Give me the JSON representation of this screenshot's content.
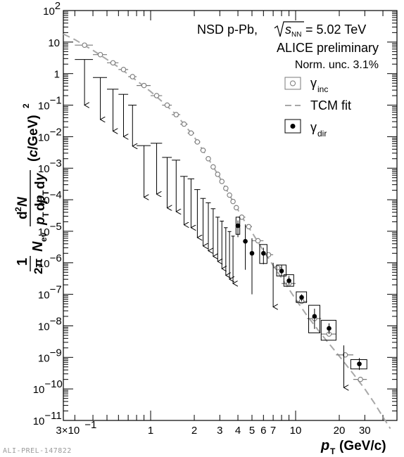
{
  "chart_data": {
    "type": "scatter",
    "x_scale": "log",
    "y_scale": "log",
    "xlim": [
      0.25,
      50
    ],
    "ylim": [
      1e-11,
      100
    ],
    "xlabel_var": "p",
    "xlabel_sub": "T",
    "xlabel_unit": "(GeV/c)",
    "x_tick_labels": [
      {
        "value": 0.3,
        "label": "3×10",
        "exp": "−1"
      },
      {
        "value": 1,
        "label": "1"
      },
      {
        "value": 2,
        "label": "2"
      },
      {
        "value": 3,
        "label": "3"
      },
      {
        "value": 4,
        "label": "4"
      },
      {
        "value": 5,
        "label": "5"
      },
      {
        "value": 6,
        "label": "6"
      },
      {
        "value": 7,
        "label": "7"
      },
      {
        "value": 10,
        "label": "10"
      },
      {
        "value": 20,
        "label": "20"
      },
      {
        "value": 30,
        "label": "30"
      }
    ],
    "y_tick_exps": [
      "2",
      "1",
      "0",
      "−1",
      "−2",
      "−3",
      "−4",
      "−5",
      "−6",
      "−7",
      "−8",
      "−9",
      "−10",
      "−11"
    ],
    "y_tick_special": {
      "10": "10",
      "1": "1"
    },
    "annotations": {
      "collision": "NSD p-Pb,",
      "energy_sym": "s",
      "energy_sub": "NN",
      "energy_val": "= 5.02 TeV",
      "experiment": "ALICE preliminary",
      "norm": "Norm. unc. 3.1%"
    },
    "legend": [
      {
        "label": "γ",
        "sub": "inc",
        "marker": "open-circle"
      },
      {
        "label": "TCM fit",
        "marker": "dashed-line"
      },
      {
        "label": "γ",
        "sub": "dir",
        "marker": "filled-circle"
      }
    ],
    "colors": {
      "inclusive": "#7a7a7a",
      "fit": "#a8a8a8",
      "direct": "#000000"
    },
    "series": [
      {
        "name": "γinc",
        "marker": "open-circle",
        "points": [
          {
            "x": 0.35,
            "y": 8.0,
            "xerr": 0.05
          },
          {
            "x": 0.45,
            "y": 4.0,
            "xerr": 0.05
          },
          {
            "x": 0.55,
            "y": 2.2,
            "xerr": 0.05
          },
          {
            "x": 0.65,
            "y": 1.35,
            "xerr": 0.05
          },
          {
            "x": 0.75,
            "y": 0.8,
            "xerr": 0.05
          },
          {
            "x": 0.9,
            "y": 0.42,
            "xerr": 0.1
          },
          {
            "x": 1.1,
            "y": 0.2,
            "xerr": 0.1
          },
          {
            "x": 1.3,
            "y": 0.1,
            "xerr": 0.1
          },
          {
            "x": 1.5,
            "y": 0.05,
            "xerr": 0.1
          },
          {
            "x": 1.7,
            "y": 0.025,
            "xerr": 0.1
          },
          {
            "x": 1.9,
            "y": 0.013,
            "xerr": 0.1
          },
          {
            "x": 2.1,
            "y": 0.0068,
            "xerr": 0.1
          },
          {
            "x": 2.3,
            "y": 0.0037,
            "xerr": 0.1
          },
          {
            "x": 2.5,
            "y": 0.002,
            "xerr": 0.1
          },
          {
            "x": 2.7,
            "y": 0.0011,
            "xerr": 0.1
          },
          {
            "x": 2.9,
            "y": 0.00064,
            "xerr": 0.1
          },
          {
            "x": 3.1,
            "y": 0.00038,
            "xerr": 0.1
          },
          {
            "x": 3.3,
            "y": 0.00023,
            "xerr": 0.1
          },
          {
            "x": 3.5,
            "y": 0.00014,
            "xerr": 0.1
          },
          {
            "x": 3.7,
            "y": 8.8e-05,
            "xerr": 0.1
          },
          {
            "x": 3.9,
            "y": 5.6e-05,
            "xerr": 0.1
          },
          {
            "x": 4.25,
            "y": 2.8e-05,
            "xerr": 0.25
          },
          {
            "x": 4.75,
            "y": 1.4e-05,
            "xerr": 0.25
          },
          {
            "x": 5.5,
            "y": 5e-06,
            "xerr": 0.5
          },
          {
            "x": 6.5,
            "y": 1.8e-06,
            "xerr": 0.5
          },
          {
            "x": 7.5,
            "y": 7e-07,
            "xerr": 0.5
          },
          {
            "x": 9.0,
            "y": 2.2e-07,
            "xerr": 1.0
          },
          {
            "x": 11.0,
            "y": 6e-08,
            "xerr": 1.0
          },
          {
            "x": 13.5,
            "y": 1.7e-08,
            "xerr": 1.5
          },
          {
            "x": 17.0,
            "y": 5.5e-09,
            "xerr": 2.0
          },
          {
            "x": 22.0,
            "y": 1.2e-09,
            "xerr": 3.0
          },
          {
            "x": 28.0,
            "y": 2e-10,
            "xerr": 3.0
          }
        ]
      },
      {
        "name": "TCM fit",
        "style": "dashed",
        "points": [
          [
            0.25,
            18
          ],
          [
            0.3,
            12
          ],
          [
            0.4,
            5.5
          ],
          [
            0.5,
            2.8
          ],
          [
            0.6,
            1.6
          ],
          [
            0.7,
            0.95
          ],
          [
            0.8,
            0.6
          ],
          [
            1.0,
            0.27
          ],
          [
            1.2,
            0.13
          ],
          [
            1.5,
            0.05
          ],
          [
            2.0,
            0.0098
          ],
          [
            2.5,
            0.002
          ],
          [
            3.0,
            0.0005
          ],
          [
            3.5,
            0.00014
          ],
          [
            4.0,
            4.8e-05
          ],
          [
            4.5,
            1.9e-05
          ],
          [
            5.0,
            9.2e-06
          ],
          [
            6.0,
            2.4e-06
          ],
          [
            7.0,
            8.2e-07
          ],
          [
            8.0,
            3.3e-07
          ],
          [
            10.0,
            7e-08
          ],
          [
            12.0,
            2.1e-08
          ],
          [
            15.0,
            5.5e-09
          ],
          [
            20.0,
            1.1e-09
          ],
          [
            25.0,
            3e-10
          ],
          [
            30.0,
            1e-10
          ],
          [
            35.0,
            3.5e-11
          ],
          [
            40.0,
            1.3e-11
          ],
          [
            45.0,
            5.5e-12
          ]
        ]
      },
      {
        "name": "γdir",
        "marker": "filled-circle",
        "points": [
          {
            "x": 4.0,
            "y": 1.5e-05,
            "sys_lo": 8e-06,
            "sys_hi": 2.8e-05,
            "stat_lo": 6.5e-06,
            "stat_hi": 2.2e-05,
            "box_halfwidth": 0.12
          },
          {
            "x": 4.5,
            "y": 4.8e-06,
            "stat_lo": 6e-07,
            "stat_hi": 1.65e-05
          },
          {
            "x": 5.0,
            "y": 2e-06,
            "stat_lo": 1e-07,
            "stat_hi": 6e-06
          },
          {
            "x": 6.0,
            "y": 2e-06,
            "sys_lo": 9.5e-07,
            "sys_hi": 3.8e-06,
            "stat_lo": 9e-07,
            "stat_hi": 3e-06,
            "box_halfwidth": 0.35
          },
          {
            "x": 8.0,
            "y": 5.5e-07,
            "sys_lo": 3.8e-07,
            "sys_hi": 8.5e-07,
            "stat_lo": 3.8e-07,
            "stat_hi": 8.5e-07,
            "box_halfwidth": 0.6
          },
          {
            "x": 9.0,
            "y": 2.7e-07,
            "sys_lo": 1.8e-07,
            "sys_hi": 4.2e-07,
            "stat_lo": 2e-07,
            "stat_hi": 3.8e-07,
            "box_halfwidth": 0.7
          },
          {
            "x": 11.0,
            "y": 8e-08,
            "sys_lo": 5.5e-08,
            "sys_hi": 1.2e-07,
            "stat_lo": 6e-08,
            "stat_hi": 1e-07,
            "box_halfwidth": 0.9
          },
          {
            "x": 13.5,
            "y": 2e-08,
            "sys_lo": 6e-09,
            "sys_hi": 4.5e-08,
            "stat_lo": 8e-09,
            "stat_hi": 3.5e-08,
            "box_halfwidth": 1.2
          },
          {
            "x": 17.0,
            "y": 8.3e-09,
            "sys_lo": 3.5e-09,
            "sys_hi": 1.5e-08,
            "stat_lo": 5.5e-09,
            "stat_hi": 1.2e-08,
            "box_halfwidth": 2.0
          },
          {
            "x": 27.5,
            "y": 6.2e-10,
            "sys_lo": 4.3e-10,
            "sys_hi": 8.5e-10,
            "stat_lo": 4e-10,
            "stat_hi": 9.5e-10,
            "box_halfwidth": 3.5
          }
        ]
      },
      {
        "name": "upper limits",
        "marker": "downward-arrow",
        "points": [
          {
            "x": 0.35,
            "y": 2.8,
            "xerr": 0.05,
            "arrow_to": 0.1
          },
          {
            "x": 0.45,
            "y": 0.75,
            "xerr": 0.05,
            "arrow_to": 0.035
          },
          {
            "x": 0.55,
            "y": 0.32,
            "xerr": 0.05,
            "arrow_to": 0.015
          },
          {
            "x": 0.65,
            "y": 0.22,
            "xerr": 0.05,
            "arrow_to": 0.01
          },
          {
            "x": 0.75,
            "y": 0.1,
            "xerr": 0.05,
            "arrow_to": 0.005
          },
          {
            "x": 0.9,
            "y": 0.0052,
            "xerr": 0.1,
            "arrow_to": 0.00012
          },
          {
            "x": 1.1,
            "y": 0.0062,
            "xerr": 0.1,
            "arrow_to": 0.00015
          },
          {
            "x": 1.3,
            "y": 0.0022,
            "xerr": 0.1,
            "arrow_to": 5.5e-05
          },
          {
            "x": 1.5,
            "y": 0.0018,
            "xerr": 0.1,
            "arrow_to": 4.2e-05
          },
          {
            "x": 1.7,
            "y": 0.00055,
            "xerr": 0.1,
            "arrow_to": 1.6e-05
          },
          {
            "x": 1.9,
            "y": 0.00046,
            "xerr": 0.1,
            "arrow_to": 1.3e-05
          },
          {
            "x": 2.1,
            "y": 0.00021,
            "xerr": 0.1,
            "arrow_to": 6.3e-06
          },
          {
            "x": 2.3,
            "y": 0.00011,
            "xerr": 0.1,
            "arrow_to": 3.4e-06
          },
          {
            "x": 2.5,
            "y": 8e-05,
            "xerr": 0.1,
            "arrow_to": 2.4e-06
          },
          {
            "x": 2.7,
            "y": 5.2e-05,
            "xerr": 0.1,
            "arrow_to": 1.6e-06
          },
          {
            "x": 2.9,
            "y": 2.8e-05,
            "xerr": 0.1,
            "arrow_to": 1.1e-06
          },
          {
            "x": 3.1,
            "y": 2.1e-05,
            "xerr": 0.1,
            "arrow_to": 6.5e-07
          },
          {
            "x": 3.3,
            "y": 1.3e-05,
            "xerr": 0.1,
            "arrow_to": 4e-07
          },
          {
            "x": 3.5,
            "y": 9.8e-06,
            "xerr": 0.1,
            "arrow_to": 3e-07
          },
          {
            "x": 3.7,
            "y": 7e-06,
            "xerr": 0.1,
            "arrow_to": 2.2e-07
          },
          {
            "x": 7.0,
            "y": 1e-06,
            "xerr": 0,
            "arrow_to": 4e-08
          },
          {
            "x": 21.5,
            "y": 2.4e-09,
            "xerr": 0,
            "arrow_to": 1.1e-10
          }
        ]
      }
    ]
  },
  "footer": {
    "prelim_id": "ALI-PREL-147822"
  }
}
